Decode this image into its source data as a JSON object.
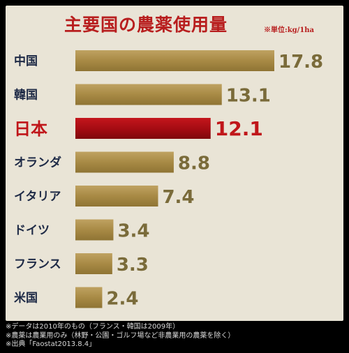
{
  "title": "主要国の農薬使用量",
  "unit": "※単位:kg/1ha",
  "chart_data": {
    "type": "bar",
    "orientation": "horizontal",
    "categories": [
      "中国",
      "韓国",
      "日本",
      "オランダ",
      "イタリア",
      "ドイツ",
      "フランス",
      "米国"
    ],
    "values": [
      17.8,
      13.1,
      12.1,
      8.8,
      7.4,
      3.4,
      3.3,
      2.4
    ],
    "value_labels": [
      "17.8",
      "13.1",
      "12.1",
      "8.8",
      "7.4",
      "3.4",
      "3.3",
      "2.4"
    ],
    "highlight": "日本",
    "bar_color": "#a88a45",
    "highlight_color": "#b00d14",
    "title": "主要国の農薬使用量",
    "xlabel": "",
    "ylabel": "",
    "grid": false,
    "legend": "none"
  },
  "notes": [
    "※データは2010年のもの（フランス・韓国は2009年）",
    "※農薬は農業用のみ（林野・公園・ゴルフ場など非農業用の農薬を除く）",
    "※出典「Faostat2013.8.4」"
  ]
}
